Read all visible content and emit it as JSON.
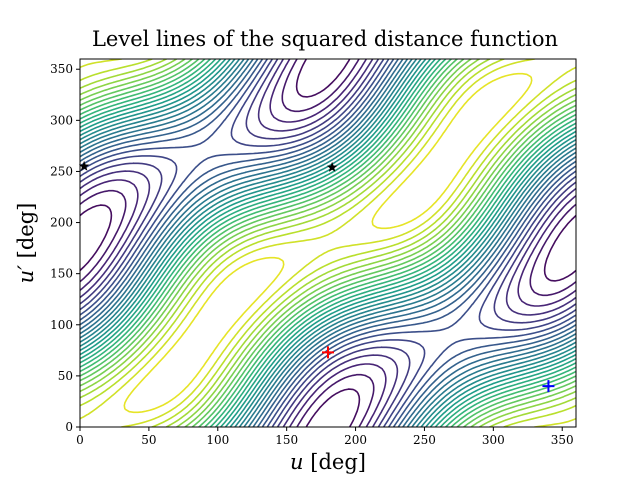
{
  "chart_data": {
    "type": "contour",
    "title": "Level lines of the squared distance function",
    "xlabel": "u [deg]",
    "ylabel": "u′ [deg]",
    "xlabel_var": "u",
    "xlabel_unit": " [deg]",
    "ylabel_var": "u′",
    "ylabel_unit": " [deg]",
    "xlim": [
      0,
      360
    ],
    "ylim": [
      0,
      360
    ],
    "xticks": [
      0,
      50,
      100,
      150,
      200,
      250,
      300,
      350
    ],
    "yticks": [
      0,
      50,
      100,
      150,
      200,
      250,
      300,
      350
    ],
    "colormap": "viridis",
    "grid": false,
    "markers": [
      {
        "symbol": "+",
        "color": "#ff0000",
        "x": 180,
        "y": 73
      },
      {
        "symbol": "+",
        "color": "#0000ff",
        "x": 340,
        "y": 40
      },
      {
        "symbol": "star",
        "color": "#000000",
        "x": 3,
        "y": 255
      },
      {
        "symbol": "star",
        "color": "#000000",
        "x": 183,
        "y": 254
      }
    ]
  }
}
